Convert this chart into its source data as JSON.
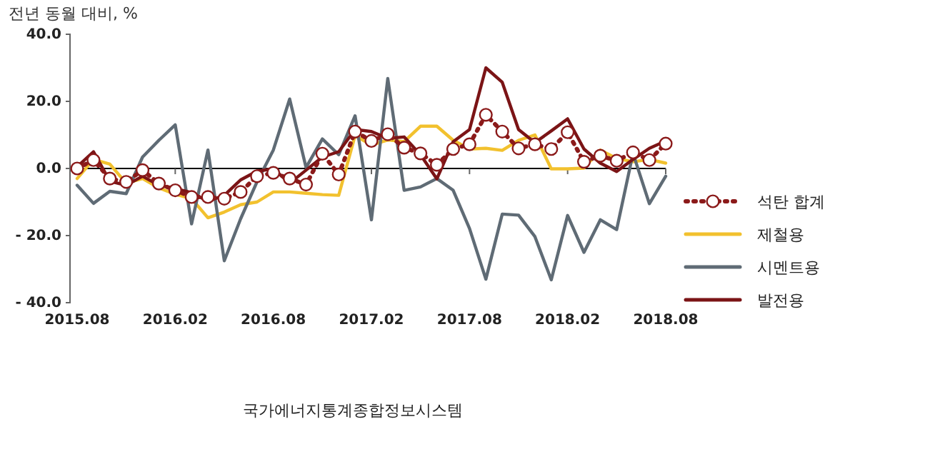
{
  "chart_data": {
    "type": "line",
    "ylabel": "전년 동월 대비, %",
    "categories": [
      "2015.08",
      null,
      null,
      null,
      null,
      null,
      "2016.02",
      null,
      null,
      null,
      null,
      null,
      "2016.08",
      null,
      null,
      null,
      null,
      null,
      "2017.02",
      null,
      null,
      null,
      null,
      null,
      "2017.08",
      null,
      null,
      null,
      null,
      null,
      "2018.02",
      null,
      null,
      null,
      null,
      null,
      "2018.08"
    ],
    "ylim": [
      -40,
      40
    ],
    "yticks": [
      {
        "value": -40,
        "label": "- 40.0"
      },
      {
        "value": -20,
        "label": "- 20.0"
      },
      {
        "value": 0,
        "label": "0.0"
      },
      {
        "value": 20,
        "label": "20.0"
      },
      {
        "value": 40,
        "label": "40.0"
      }
    ],
    "series": [
      {
        "name": "석탄 합계",
        "color": "#8b1a1a",
        "line_style": "dotted",
        "marker": "circle",
        "values": [
          0,
          2.5,
          -3,
          -4,
          -0.5,
          -4.5,
          -6.5,
          -8.5,
          -8.5,
          -9,
          -7,
          -2.3,
          -1.3,
          -3,
          -4.8,
          4.4,
          -1.8,
          11,
          8.2,
          10.2,
          6.2,
          4.5,
          1.1,
          5.8,
          7.2,
          16,
          11,
          6,
          7.2,
          5.8,
          10.8,
          2,
          3.8,
          2.3,
          4.8,
          2.5,
          7.4
        ]
      },
      {
        "name": "제철용",
        "color": "#f2c12e",
        "values": [
          -3,
          2.7,
          1.3,
          -4.4,
          -3,
          -5.8,
          -7.7,
          -9,
          -14.7,
          -13,
          -10.8,
          -10,
          -7,
          -7,
          -7.4,
          -7.8,
          -8,
          9.8,
          7,
          8.5,
          8,
          12.6,
          12.6,
          8.4,
          5.8,
          6,
          5.4,
          8.4,
          10,
          -0.1,
          -0.1,
          0.1,
          5.5,
          3,
          2,
          2.7,
          1.6
        ]
      },
      {
        "name": "시멘트용",
        "color": "#5f6b75",
        "values": [
          -5,
          -10.4,
          -6.8,
          -7.5,
          3.4,
          8.4,
          13,
          -16.5,
          5.5,
          -27.5,
          -15,
          -4,
          5.5,
          20.7,
          0.3,
          8.8,
          4.1,
          15.7,
          -15.3,
          26.8,
          -6.5,
          -5.5,
          -3,
          -6.5,
          -17.9,
          -33,
          -13.6,
          -13.9,
          -20.3,
          -33.2,
          -14,
          -25,
          -15.3,
          -18.2,
          4.5,
          -10.5,
          -2.3
        ]
      },
      {
        "name": "발전용",
        "color": "#7b1416",
        "values": [
          0.5,
          5,
          -3.8,
          -5,
          -2.3,
          -5,
          -6,
          -7.2,
          -9.8,
          -8,
          -3.4,
          -0.8,
          -0.1,
          -4.4,
          -0.5,
          3.4,
          5,
          11.6,
          11,
          9,
          9.4,
          4.1,
          -3.1,
          8,
          11.6,
          30,
          25.7,
          11.6,
          7.7,
          11.2,
          14.8,
          5.8,
          1.6,
          -0.9,
          2.7,
          6,
          8.2
        ]
      }
    ],
    "legend": "right",
    "annotations": [
      "국가에너지통계종합정보시스템"
    ]
  }
}
